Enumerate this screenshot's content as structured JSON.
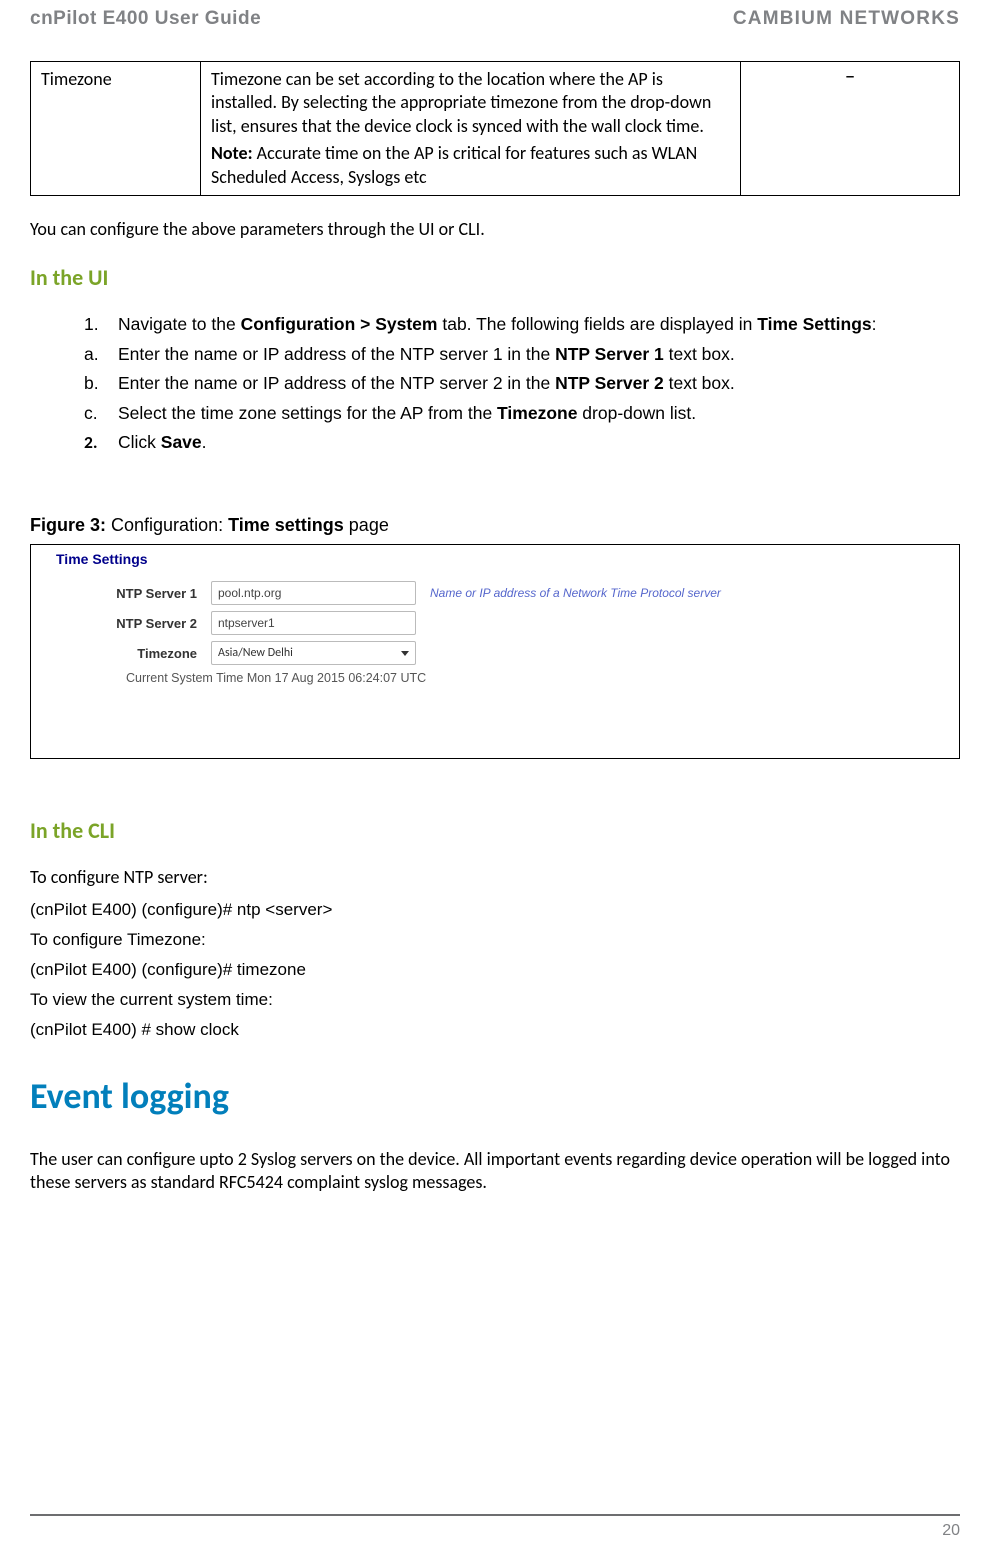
{
  "header": {
    "left": "cnPilot E400 User Guide",
    "right": "CAMBIUM NETWORKS"
  },
  "table": {
    "col1": "Timezone",
    "col2_p1": "Timezone can be set according to the location where the AP is installed. By selecting the appropriate timezone from the drop-down list, ensures that the device clock is synced with the wall clock time.",
    "col2_note_label": "Note:",
    "col2_note": " Accurate time on the AP is critical for features such as WLAN Scheduled Access, Syslogs etc",
    "col3": "–"
  },
  "body_intro": "You can configure the above parameters through the UI or CLI.",
  "h_ui": "In the UI",
  "steps": {
    "s1_marker": "1.",
    "s1_a": "Navigate to the ",
    "s1_b": "Configuration > System",
    "s1_c": " tab. The following fields are displayed in ",
    "s1_d": "Time Settings",
    "s1_e": ":",
    "sa_marker": "a.",
    "sa_a": "Enter the name or IP address of the NTP server 1 in the ",
    "sa_b": "NTP Server 1",
    "sa_c": " text box.",
    "sb_marker": "b.",
    "sb_a": "Enter the name or IP address of the NTP server 2 in the ",
    "sb_b": "NTP Server 2",
    "sb_c": " text box.",
    "sc_marker": "c.",
    "sc_a": "Select the time zone settings for the AP from the ",
    "sc_b": "Timezone",
    "sc_c": " drop-down list.",
    "s2_marker": "2.",
    "s2_a": "Click ",
    "s2_b": "Save",
    "s2_c": "."
  },
  "fig": {
    "caption_a": "Figure 3:",
    "caption_b": " Configuration: ",
    "caption_c": "Time settings",
    "caption_d": " page",
    "title": "Time Settings",
    "row1_label": "NTP Server 1",
    "row1_value": "pool.ntp.org",
    "row1_hint": "Name or IP address of a Network Time Protocol server",
    "row2_label": "NTP Server 2",
    "row2_value": "ntpserver1",
    "row3_label": "Timezone",
    "row3_value": "Asia/New Delhi",
    "time_text": "Current System Time Mon 17 Aug 2015 06:24:07 UTC"
  },
  "h_cli": "In the CLI",
  "cli": {
    "sub1": "To configure NTP server:",
    "line1": "(cnPilot E400) (configure)# ntp <server>",
    "sub2": "To configure Timezone:",
    "line2": "(cnPilot E400) (configure)# timezone",
    "sub3": "To view the current system time:",
    "line3": "(cnPilot E400) # show clock"
  },
  "h_event": "Event logging",
  "event_body": "The user can configure upto 2 Syslog servers on the device. All important events regarding device operation will be logged into these servers as standard RFC5424 complaint syslog messages.",
  "page_num": "20"
}
